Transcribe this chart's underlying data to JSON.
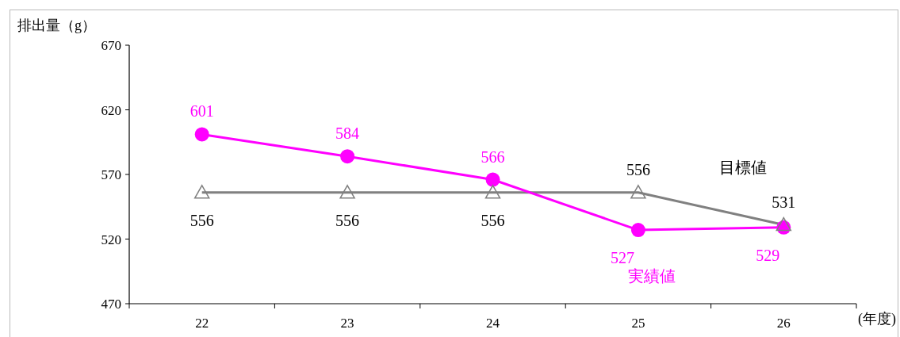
{
  "chart_data": {
    "type": "line",
    "ylabel": "排出量（g）",
    "xlabel": "(年度)",
    "categories": [
      "22",
      "23",
      "24",
      "25",
      "26"
    ],
    "series": [
      {
        "name": "目標値",
        "color": "#808080",
        "marker": "triangle",
        "values": [
          556,
          556,
          556,
          556,
          531
        ]
      },
      {
        "name": "実績値",
        "color": "#ff00ff",
        "marker": "circle",
        "values": [
          601,
          584,
          566,
          527,
          529
        ]
      }
    ],
    "ylim": [
      470,
      670
    ],
    "yticks": [
      470,
      520,
      570,
      620,
      670
    ],
    "data_labels": true,
    "grid": false
  }
}
